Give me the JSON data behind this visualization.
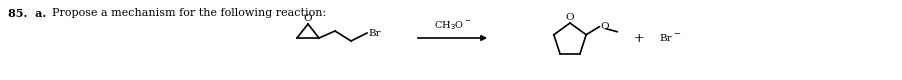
{
  "background": "#ffffff",
  "text_color": "#000000",
  "figsize": [
    9.02,
    0.8
  ],
  "dpi": 100,
  "lw": 1.2,
  "header_text": "85.  a.",
  "header_propose": "Propose a mechanism for the following reaction:",
  "reagent_label": "CH$_3$O$^-$",
  "plus_label": "+",
  "br_minus_label": "Br",
  "br_minus_sup": "−",
  "o_label": "O",
  "br_label": "Br"
}
